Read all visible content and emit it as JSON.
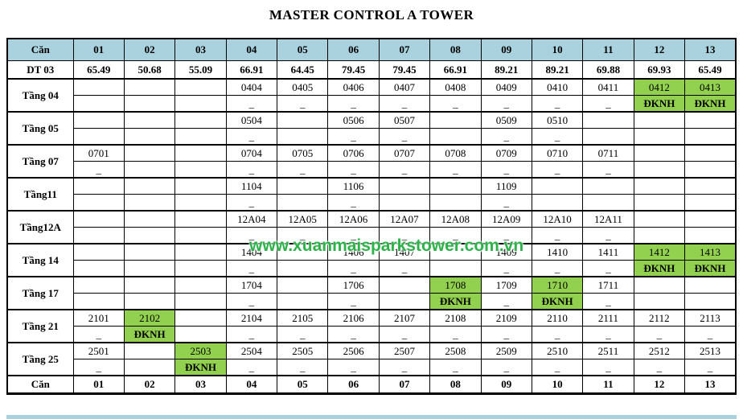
{
  "title": "MASTER CONTROL A TOWER",
  "watermark": "www.xuanmaisparkstower.com.vn",
  "colors": {
    "header_bg": "#A9D2DE",
    "available_bg": "#92D050",
    "watermark_green": "#2DB34A"
  },
  "table": {
    "corner_label": "Căn",
    "columns": [
      "01",
      "02",
      "03",
      "04",
      "05",
      "06",
      "07",
      "08",
      "09",
      "10",
      "11",
      "12",
      "13"
    ],
    "area_row": {
      "label": "DT 03",
      "values": [
        "65.49",
        "50.68",
        "55.09",
        "66.91",
        "64.45",
        "79.45",
        "79.45",
        "66.91",
        "89.21",
        "89.21",
        "69.88",
        "69.93",
        "65.49"
      ]
    },
    "floors": [
      {
        "label": "Tầng 04",
        "units": [
          "",
          "",
          "",
          "0404",
          "0405",
          "0406",
          "0407",
          "0408",
          "0409",
          "0410",
          "0411",
          "0412",
          "0413"
        ],
        "status": [
          "",
          "",
          "",
          "_",
          "_",
          "_",
          "_",
          "_",
          "_",
          "_",
          "_",
          "ĐKNH",
          "ĐKNH"
        ],
        "highlight": [
          0,
          0,
          0,
          0,
          0,
          0,
          0,
          0,
          0,
          0,
          0,
          1,
          1
        ]
      },
      {
        "label": "Tầng 05",
        "units": [
          "",
          "",
          "",
          "0504",
          "",
          "0506",
          "0507",
          "",
          "0509",
          "0510",
          "",
          "",
          ""
        ],
        "status": [
          "",
          "",
          "",
          "_",
          "",
          "_",
          "_",
          "",
          "_",
          "_",
          "",
          "",
          ""
        ],
        "highlight": [
          0,
          0,
          0,
          0,
          0,
          0,
          0,
          0,
          0,
          0,
          0,
          0,
          0
        ]
      },
      {
        "label": "Tầng 07",
        "units": [
          "0701",
          "",
          "",
          "0704",
          "0705",
          "0706",
          "0707",
          "0708",
          "0709",
          "0710",
          "0711",
          "",
          ""
        ],
        "status": [
          "_",
          "",
          "",
          "_",
          "_",
          "_",
          "_",
          "_",
          "_",
          "_",
          "_",
          "",
          ""
        ],
        "highlight": [
          0,
          0,
          0,
          0,
          0,
          0,
          0,
          0,
          0,
          0,
          0,
          0,
          0
        ]
      },
      {
        "label": "Tầng11",
        "units": [
          "",
          "",
          "",
          "1104",
          "",
          "1106",
          "",
          "",
          "1109",
          "",
          "",
          "",
          ""
        ],
        "status": [
          "",
          "",
          "",
          "_",
          "",
          "_",
          "",
          "",
          "_",
          "",
          "",
          "",
          ""
        ],
        "highlight": [
          0,
          0,
          0,
          0,
          0,
          0,
          0,
          0,
          0,
          0,
          0,
          0,
          0
        ]
      },
      {
        "label": "Tầng12A",
        "units": [
          "",
          "",
          "",
          "12A04",
          "12A05",
          "12A06",
          "12A07",
          "12A08",
          "12A09",
          "12A10",
          "12A11",
          "",
          ""
        ],
        "status": [
          "",
          "",
          "",
          "_",
          "_",
          "_",
          "_",
          "_",
          "_",
          "_",
          "_",
          "",
          ""
        ],
        "highlight": [
          0,
          0,
          0,
          0,
          0,
          0,
          0,
          0,
          0,
          0,
          0,
          0,
          0
        ]
      },
      {
        "label": "Tầng 14",
        "units": [
          "",
          "",
          "",
          "1404",
          "",
          "1406",
          "1407",
          "",
          "1409",
          "1410",
          "1411",
          "1412",
          "1413"
        ],
        "status": [
          "",
          "",
          "",
          "_",
          "",
          "_",
          "_",
          "",
          "_",
          "_",
          "_",
          "ĐKNH",
          "ĐKNH"
        ],
        "highlight": [
          0,
          0,
          0,
          0,
          0,
          0,
          0,
          0,
          0,
          0,
          0,
          1,
          1
        ]
      },
      {
        "label": "Tầng 17",
        "units": [
          "",
          "",
          "",
          "1704",
          "",
          "1706",
          "",
          "1708",
          "1709",
          "1710",
          "1711",
          "",
          ""
        ],
        "status": [
          "",
          "",
          "",
          "_",
          "",
          "_",
          "",
          "ĐKNH",
          "_",
          "ĐKNH",
          "_",
          "",
          ""
        ],
        "highlight": [
          0,
          0,
          0,
          0,
          0,
          0,
          0,
          1,
          0,
          1,
          0,
          0,
          0
        ]
      },
      {
        "label": "Tầng 21",
        "units": [
          "2101",
          "2102",
          "",
          "2104",
          "2105",
          "2106",
          "2107",
          "2108",
          "2109",
          "2110",
          "2111",
          "2112",
          "2113"
        ],
        "status": [
          "_",
          "ĐKNH",
          "",
          "_",
          "_",
          "_",
          "_",
          "_",
          "_",
          "_",
          "_",
          "_",
          "_"
        ],
        "highlight": [
          0,
          1,
          0,
          0,
          0,
          0,
          0,
          0,
          0,
          0,
          0,
          0,
          0
        ]
      },
      {
        "label": "Tầng 25",
        "units": [
          "2501",
          "",
          "2503",
          "2504",
          "2505",
          "2506",
          "2507",
          "2508",
          "2509",
          "2510",
          "2511",
          "2512",
          "2513"
        ],
        "status": [
          "_",
          "",
          "ĐKNH",
          "_",
          "_",
          "_",
          "_",
          "_",
          "_",
          "_",
          "_",
          "_",
          "_"
        ],
        "highlight": [
          0,
          0,
          1,
          0,
          0,
          0,
          0,
          0,
          0,
          0,
          0,
          0,
          0
        ]
      }
    ],
    "footer": {
      "label": "Căn",
      "columns": [
        "01",
        "02",
        "03",
        "04",
        "05",
        "06",
        "07",
        "08",
        "09",
        "10",
        "11",
        "12",
        "13"
      ]
    }
  }
}
